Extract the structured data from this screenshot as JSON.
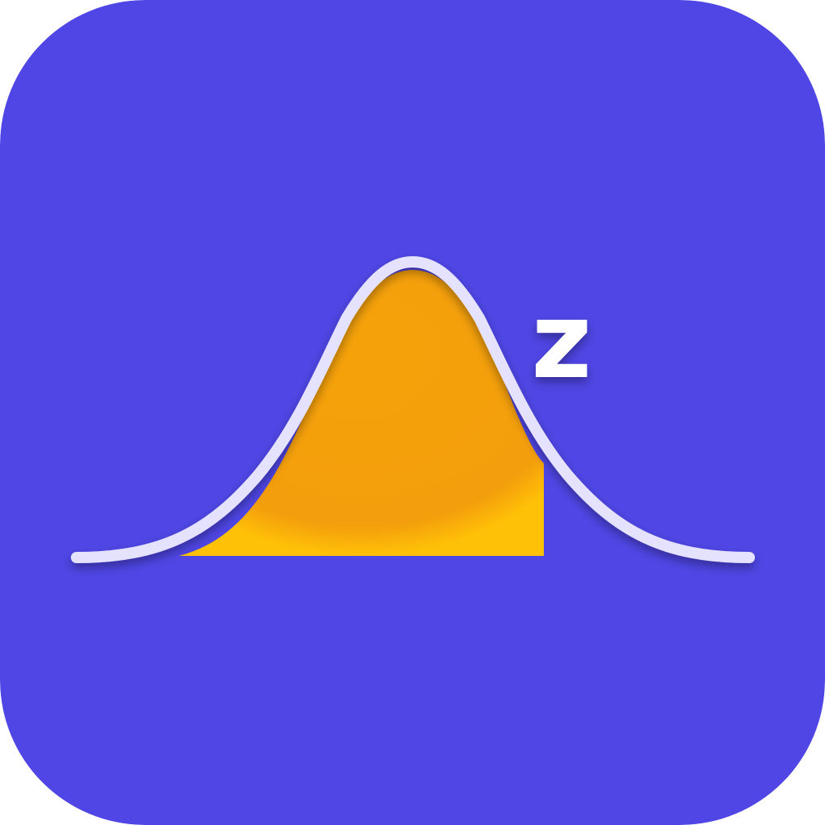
{
  "icon": {
    "label": "z",
    "colors": {
      "background": "#4F46E5",
      "curve_stroke": "#E4E2FF",
      "fill": "#F4A30B",
      "axis": "#E4E2FF",
      "label": "#FFFFFF"
    }
  }
}
